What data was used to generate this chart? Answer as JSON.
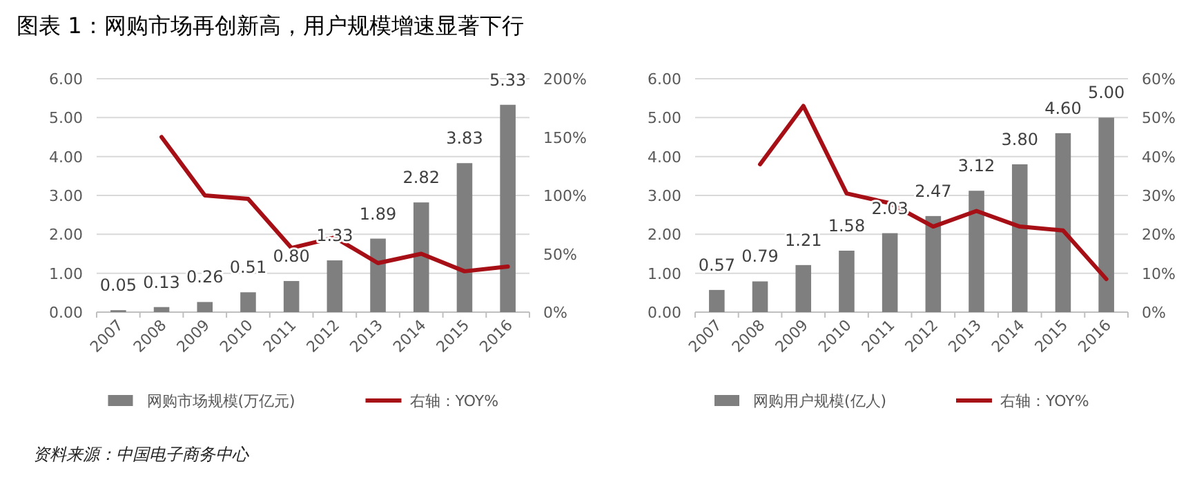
{
  "chart_data": [
    {
      "type": "bar",
      "title": "图表 1：网购市场再创新高，用户规模增速显著下行",
      "annotations": [
        "资料来源：中国电子商务中心"
      ],
      "categories": [
        "2007",
        "2008",
        "2009",
        "2010",
        "2011",
        "2012",
        "2013",
        "2014",
        "2015",
        "2016"
      ],
      "series": [
        {
          "name": "网购市场规模(万亿元)",
          "color": "#7f7f7f",
          "values": [
            0.05,
            0.13,
            0.26,
            0.51,
            0.8,
            1.33,
            1.89,
            2.82,
            3.83,
            5.33
          ],
          "value_labels": [
            "0.05",
            "0.13",
            "0.26",
            "0.51",
            "0.80",
            "1.33",
            "1.89",
            "2.82",
            "3.83",
            "5.33"
          ]
        },
        {
          "name": "右轴：YOY%",
          "type": "line",
          "axis": "y2",
          "color": "#a50f15",
          "values": [
            null,
            150,
            100,
            97,
            55,
            64,
            42,
            50,
            35,
            39
          ]
        }
      ],
      "ylim": [
        0,
        6
      ],
      "yticks": [
        {
          "value": 0,
          "label": "0.00"
        },
        {
          "value": 1,
          "label": "1.00"
        },
        {
          "value": 2,
          "label": "2.00"
        },
        {
          "value": 3,
          "label": "3.00"
        },
        {
          "value": 4,
          "label": "4.00"
        },
        {
          "value": 5,
          "label": "5.00"
        },
        {
          "value": 6,
          "label": "6.00"
        }
      ],
      "y2lim": [
        0,
        200
      ],
      "y2ticks": [
        {
          "value": 0,
          "label": "0%"
        },
        {
          "value": 50,
          "label": "50%"
        },
        {
          "value": 100,
          "label": "100%"
        },
        {
          "value": 150,
          "label": "150%"
        },
        {
          "value": 200,
          "label": "200%"
        }
      ],
      "grid": "y",
      "legend": "bottom",
      "marker": "none",
      "line_style": "solid"
    },
    {
      "type": "bar",
      "categories": [
        "2007",
        "2008",
        "2009",
        "2010",
        "2011",
        "2012",
        "2013",
        "2014",
        "2015",
        "2016"
      ],
      "series": [
        {
          "name": "网购用户规模(亿人)",
          "color": "#7f7f7f",
          "values": [
            0.57,
            0.79,
            1.21,
            1.58,
            2.03,
            2.47,
            3.12,
            3.8,
            4.6,
            5.0
          ],
          "value_labels": [
            "0.57",
            "0.79",
            "1.21",
            "1.58",
            "2.03",
            "2.47",
            "3.12",
            "3.80",
            "4.60",
            "5.00"
          ]
        },
        {
          "name": "右轴：YOY%",
          "type": "line",
          "axis": "y2",
          "color": "#a50f15",
          "values": [
            null,
            38,
            53,
            30.5,
            28,
            22,
            26,
            22,
            21,
            8.5
          ]
        }
      ],
      "ylim": [
        0,
        6
      ],
      "yticks": [
        {
          "value": 0,
          "label": "0.00"
        },
        {
          "value": 1,
          "label": "1.00"
        },
        {
          "value": 2,
          "label": "2.00"
        },
        {
          "value": 3,
          "label": "3.00"
        },
        {
          "value": 4,
          "label": "4.00"
        },
        {
          "value": 5,
          "label": "5.00"
        },
        {
          "value": 6,
          "label": "6.00"
        }
      ],
      "y2lim": [
        0,
        60
      ],
      "y2ticks": [
        {
          "value": 0,
          "label": "0%"
        },
        {
          "value": 10,
          "label": "10%"
        },
        {
          "value": 20,
          "label": "20%"
        },
        {
          "value": 30,
          "label": "30%"
        },
        {
          "value": 40,
          "label": "40%"
        },
        {
          "value": 50,
          "label": "50%"
        },
        {
          "value": 60,
          "label": "60%"
        }
      ],
      "grid": "y",
      "legend": "bottom",
      "marker": "none",
      "line_style": "solid"
    }
  ]
}
